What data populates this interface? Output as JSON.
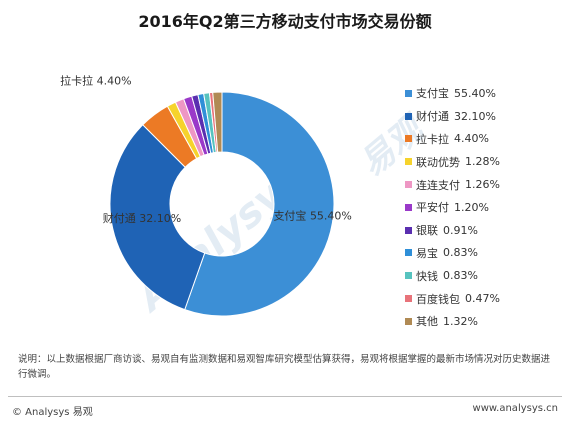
{
  "chart_data": {
    "type": "pie",
    "title": "2016年Q2第三方移动支付市场交易份额",
    "series": [
      {
        "name": "支付宝",
        "value": 55.4,
        "display": "55.40%",
        "color": "#3c8fd6"
      },
      {
        "name": "财付通",
        "value": 32.1,
        "display": "32.10%",
        "color": "#1f63b5"
      },
      {
        "name": "拉卡拉",
        "value": 4.4,
        "display": "4.40%",
        "color": "#ec7a25"
      },
      {
        "name": "联动优势",
        "value": 1.28,
        "display": "1.28%",
        "color": "#f6d32c"
      },
      {
        "name": "连连支付",
        "value": 1.26,
        "display": "1.26%",
        "color": "#ee97c4"
      },
      {
        "name": "平安付",
        "value": 1.2,
        "display": "1.20%",
        "color": "#9a39c9"
      },
      {
        "name": "银联",
        "value": 0.91,
        "display": "0.91%",
        "color": "#5a2fb0"
      },
      {
        "name": "易宝",
        "value": 0.83,
        "display": "0.83%",
        "color": "#2f8fd8"
      },
      {
        "name": "快钱",
        "value": 0.83,
        "display": "0.83%",
        "color": "#57c3bf"
      },
      {
        "name": "百度钱包",
        "value": 0.47,
        "display": "0.47%",
        "color": "#e8737a"
      },
      {
        "name": "其他",
        "value": 1.32,
        "display": "1.32%",
        "color": "#b08a54"
      }
    ],
    "donut_labels": [
      {
        "name": "支付宝",
        "text": "55.40%"
      },
      {
        "name": "财付通",
        "text": "32.10%"
      },
      {
        "name": "拉卡拉",
        "text": "4.40%"
      }
    ]
  },
  "note": "说明：以上数据根据厂商访谈、易观自有监测数据和易观智库研究模型估算获得，易观将根据掌握的最新市场情况对历史数据进行微调。",
  "footer": {
    "left": "© Analysys 易观",
    "right": "www.analysys.cn"
  },
  "watermark": {
    "text": "Analysys",
    "cn": "易观"
  }
}
